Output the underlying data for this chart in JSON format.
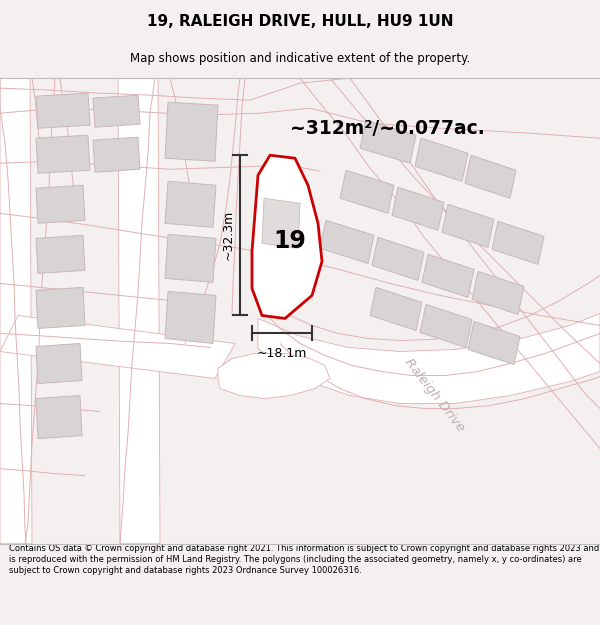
{
  "title_line1": "19, RALEIGH DRIVE, HULL, HU9 1UN",
  "title_line2": "Map shows position and indicative extent of the property.",
  "area_text": "~312m²/~0.077ac.",
  "number_label": "19",
  "dim_height": "~32.3m",
  "dim_width": "~18.1m",
  "road_label": "Raleigh Drive",
  "footer_text": "Contains OS data © Crown copyright and database right 2021. This information is subject to Crown copyright and database rights 2023 and is reproduced with the permission of HM Land Registry. The polygons (including the associated geometry, namely x, y co-ordinates) are subject to Crown copyright and database rights 2023 Ordnance Survey 100026316.",
  "bg_color": "#f5f0f0",
  "map_bg": "#f0eaea",
  "road_fill": "#ffffff",
  "building_fill": "#d8d4d4",
  "building_stroke": "#c8b8b8",
  "road_stroke": "#e0b0b0",
  "plot_stroke": "#cc0000",
  "plot_fill": "#ffffff",
  "dim_color": "#333333",
  "title_color": "#000000",
  "footer_color": "#000000"
}
